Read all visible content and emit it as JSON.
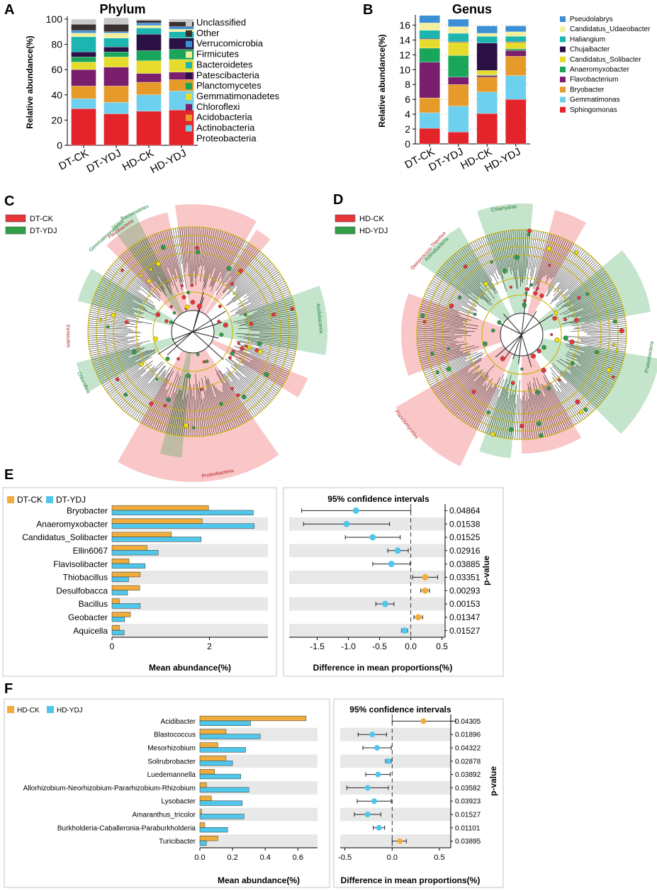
{
  "colors": {
    "proteobacteria": "#e3242b",
    "actinobacteria": "#6cd0ee",
    "acidobacteria": "#e69a2a",
    "chloroflexi": "#7a1e6e",
    "planctomycetes": "#1aa65a",
    "gemmatimonadetes": "#e5dc2d",
    "patescibacteria": "#2a1044",
    "bacteroidetes": "#1cb5b0",
    "firmicutes": "#f3ef9c",
    "verrucomicrobia": "#3d8fd6",
    "other": "#3a3230",
    "unclassified": "#c9c9c9",
    "ck": "#f0ad3c",
    "ydj": "#4fc6ea",
    "red_clade": "#e8353a",
    "green_clade": "#2f9e49",
    "stripe": "#e8e8e8"
  },
  "chart_data": [
    {
      "id": "A",
      "panel_letter": "A",
      "type": "bar",
      "stacked": true,
      "title": "Phylum",
      "ylabel": "Relative abundance(%)",
      "xlabel": "",
      "ylim": [
        0,
        100
      ],
      "yticks": [
        "0",
        "20",
        "40",
        "60",
        "80",
        "100"
      ],
      "categories": [
        "DT-CK",
        "DT-YDJ",
        "HD-CK",
        "HD-YDJ"
      ],
      "legend_position": "right",
      "series": [
        {
          "name": "Proteobacteria",
          "color_key": "proteobacteria",
          "values": [
            29,
            25,
            27,
            28
          ]
        },
        {
          "name": "Actinobacteria",
          "color_key": "actinobacteria",
          "values": [
            8,
            9,
            13,
            15
          ]
        },
        {
          "name": "Acidobacteria",
          "color_key": "acidobacteria",
          "values": [
            10,
            13,
            10,
            9
          ]
        },
        {
          "name": "Chloroflexi",
          "color_key": "chloroflexi",
          "values": [
            13,
            15,
            7,
            6
          ]
        },
        {
          "name": "Gemmatimonadetes",
          "color_key": "gemmatimonadetes",
          "values": [
            6,
            8,
            10,
            10
          ]
        },
        {
          "name": "Planctomycetes",
          "color_key": "planctomycetes",
          "values": [
            4,
            4,
            8,
            8
          ]
        },
        {
          "name": "Patescibacteria",
          "color_key": "patescibacteria",
          "values": [
            4,
            4,
            13,
            9
          ]
        },
        {
          "name": "Bacteroidetes",
          "color_key": "bacteroidetes",
          "values": [
            12,
            7,
            5,
            5
          ]
        },
        {
          "name": "Firmicutes",
          "color_key": "firmicutes",
          "values": [
            3,
            4,
            2,
            2
          ]
        },
        {
          "name": "Verrucomicrobia",
          "color_key": "verrucomicrobia",
          "values": [
            2,
            1,
            2,
            2
          ]
        },
        {
          "name": "Other",
          "color_key": "other",
          "values": [
            5,
            6,
            2,
            4
          ]
        },
        {
          "name": "Unclassified",
          "color_key": "unclassified",
          "values": [
            4,
            5,
            1,
            2
          ]
        }
      ]
    },
    {
      "id": "B",
      "panel_letter": "B",
      "type": "bar",
      "stacked": true,
      "title": "Genus",
      "ylabel": "Relative abundance(%)",
      "xlabel": "",
      "ylim": [
        0,
        17
      ],
      "yticks": [
        "0",
        "2",
        "4",
        "6",
        "8",
        "10",
        "12",
        "14",
        "16"
      ],
      "categories": [
        "DT-CK",
        "DT-YDJ",
        "HD-CK",
        "HD-YDJ"
      ],
      "legend_position": "right",
      "series": [
        {
          "name": "Sphingomonas",
          "color_key": "proteobacteria",
          "values": [
            2.1,
            1.6,
            4.1,
            6.0
          ]
        },
        {
          "name": "Gemmatimonas",
          "color_key": "actinobacteria",
          "values": [
            2.1,
            3.5,
            2.9,
            3.2
          ]
        },
        {
          "name": "Bryobacter",
          "color_key": "acidobacteria",
          "values": [
            2.0,
            2.9,
            2.0,
            2.6
          ]
        },
        {
          "name": "Flavobacterium",
          "color_key": "chloroflexi",
          "values": [
            4.8,
            1.0,
            0.2,
            0.8
          ]
        },
        {
          "name": "Anaeromyxobacter",
          "color_key": "planctomycetes",
          "values": [
            1.9,
            2.9,
            0.1,
            0.2
          ]
        },
        {
          "name": "Candidatus_Solibacter",
          "color_key": "gemmatimonadetes",
          "values": [
            1.2,
            1.8,
            0.6,
            0.9
          ]
        },
        {
          "name": "Chujaibacter",
          "color_key": "patescibacteria",
          "values": [
            0.1,
            0.1,
            3.7,
            0.1
          ]
        },
        {
          "name": "Haliangium",
          "color_key": "bacteroidetes",
          "values": [
            1.1,
            1.1,
            0.9,
            0.7
          ]
        },
        {
          "name": "Candidatus_Udaeobacter",
          "color_key": "firmicutes",
          "values": [
            1.0,
            0.9,
            0.4,
            0.6
          ]
        },
        {
          "name": "Pseudolabrys",
          "color_key": "verrucomicrobia",
          "values": [
            1.0,
            1.0,
            1.0,
            0.8
          ]
        }
      ]
    },
    {
      "id": "E",
      "panel_letter": "E",
      "type": "bar",
      "orientation": "horizontal",
      "xlabel": "Mean abundance(%)",
      "xlim": [
        0,
        3.2
      ],
      "xticks": [
        "0",
        "2"
      ],
      "categories": [
        "Bryobacter",
        "Anaeromyxobacter",
        "Candidatus_Solibacter",
        "Ellin6067",
        "Flavisolibacter",
        "Thiobacillus",
        "Desulfobacca",
        "Bacillus",
        "Geobacter",
        "Aquicella"
      ],
      "series": [
        {
          "name": "DT-CK",
          "color_key": "ck",
          "values": [
            1.98,
            1.85,
            1.22,
            0.72,
            0.35,
            0.58,
            0.57,
            0.15,
            0.38,
            0.15
          ]
        },
        {
          "name": "DT-YDJ",
          "color_key": "ydj",
          "values": [
            2.9,
            2.92,
            1.83,
            0.95,
            0.68,
            0.34,
            0.32,
            0.58,
            0.26,
            0.25
          ]
        }
      ]
    },
    {
      "id": "E_ci",
      "type": "scatter",
      "title": "95% confidence intervals",
      "xlabel": "Difference in mean proportions(%)",
      "ylabel": "p-value",
      "xlim": [
        -1.95,
        0.55
      ],
      "xticks": [
        "-1.5",
        "-1.0",
        "-0.5",
        "0.0",
        "0.5"
      ],
      "categories": [
        "Bryobacter",
        "Anaeromyxobacter",
        "Candidatus_Solibacter",
        "Ellin6067",
        "Flavisolibacter",
        "Thiobacillus",
        "Desulfobacca",
        "Bacillus",
        "Geobacter",
        "Aquicella"
      ],
      "diff": [
        -0.88,
        -1.03,
        -0.61,
        -0.21,
        -0.31,
        0.23,
        0.23,
        -0.41,
        0.12,
        -0.1
      ],
      "lower": [
        -1.75,
        -1.72,
        -1.05,
        -0.37,
        -0.61,
        0.03,
        0.16,
        -0.56,
        0.05,
        -0.15
      ],
      "upper": [
        0.0,
        -0.34,
        -0.17,
        -0.04,
        -0.01,
        0.43,
        0.3,
        -0.27,
        0.19,
        -0.05
      ],
      "pvalues": [
        "0.04864",
        "0.01538",
        "0.01525",
        "0.02916",
        "0.03885",
        "0.03351",
        "0.00293",
        "0.00153",
        "0.01347",
        "0.01527"
      ]
    },
    {
      "id": "F",
      "panel_letter": "F",
      "type": "bar",
      "orientation": "horizontal",
      "xlabel": "Mean abundance(%)",
      "xlim": [
        0,
        0.72
      ],
      "xticks": [
        "0.0",
        "0.2",
        "0.4",
        "0.6"
      ],
      "categories": [
        "Acidibacter",
        "Blastococcus",
        "Mesorhizobium",
        "Solirubrobacter",
        "Luedemannella",
        "Allorhizobium-Neorhizobium-Pararhizobium-Rhizobium",
        "Lysobacter",
        "Amaranthus_tricolor",
        "Burkholderia-Caballeronia-Paraburkholderia",
        "Turicibacter"
      ],
      "series": [
        {
          "name": "HD-CK",
          "color_key": "ck",
          "values": [
            0.65,
            0.16,
            0.11,
            0.16,
            0.09,
            0.04,
            0.07,
            0.01,
            0.03,
            0.11
          ]
        },
        {
          "name": "HD-YDJ",
          "color_key": "ydj",
          "values": [
            0.31,
            0.37,
            0.28,
            0.2,
            0.25,
            0.3,
            0.26,
            0.27,
            0.17,
            0.04
          ]
        }
      ]
    },
    {
      "id": "F_ci",
      "type": "scatter",
      "title": "95% confidence intervals",
      "xlabel": "Difference in mean proportions(%)",
      "ylabel": "p-value",
      "xlim": [
        -0.55,
        0.62
      ],
      "xticks": [
        "-0.5",
        "0.0",
        "0.5"
      ],
      "categories": [
        "Acidibacter",
        "Blastococcus",
        "Mesorhizobium",
        "Solirubrobacter",
        "Luedemannella",
        "Allorhizobium-Neorhizobium-Pararhizobium-Rhizobium",
        "Lysobacter",
        "Amaranthus_tricolor",
        "Burkholderia-Caballeronia-Paraburkholderia",
        "Turicibacter"
      ],
      "diff": [
        0.33,
        -0.21,
        -0.16,
        -0.04,
        -0.15,
        -0.26,
        -0.19,
        -0.26,
        -0.14,
        0.08
      ],
      "lower": [
        0.0,
        -0.36,
        -0.31,
        -0.07,
        -0.28,
        -0.48,
        -0.37,
        -0.4,
        -0.2,
        0.0
      ],
      "upper": [
        0.67,
        -0.06,
        -0.01,
        -0.01,
        -0.02,
        -0.04,
        -0.01,
        -0.12,
        -0.08,
        0.15
      ],
      "pvalues": [
        "0.04305",
        "0.01896",
        "0.04322",
        "0.02878",
        "0.03892",
        "0.03582",
        "0.03923",
        "0.01527",
        "0.01101",
        "0.03895"
      ]
    }
  ],
  "cladogram_c": {
    "panel_letter": "C",
    "legend": [
      {
        "label": "DT-CK",
        "color_key": "red_clade"
      },
      {
        "label": "DT-YDJ",
        "color_key": "green_clade"
      }
    ],
    "clade_labels": [
      "Acidobacteria",
      "Proteobacteria",
      "Firmicutes",
      "Chloroflexi",
      "Flavobacteria",
      "Gemmatimonadetes",
      "Bacteroidetes"
    ]
  },
  "cladogram_d": {
    "panel_letter": "D",
    "legend": [
      {
        "label": "HD-CK",
        "color_key": "red_clade"
      },
      {
        "label": "HD-YDJ",
        "color_key": "green_clade"
      }
    ],
    "clade_labels": [
      "Chlamydiae",
      "Deinococcus-Thermus",
      "Actinobacteria",
      "Planctomycetes",
      "Proteobacteria"
    ]
  }
}
